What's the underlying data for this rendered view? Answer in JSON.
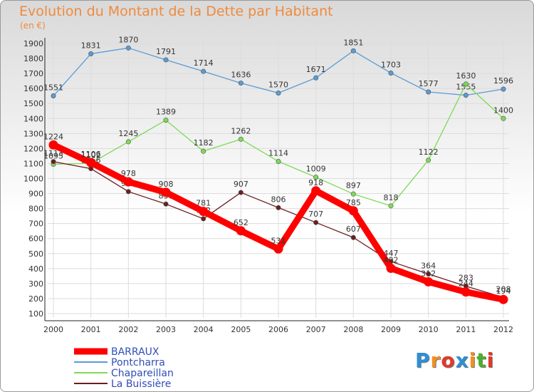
{
  "title": "Evolution du Montant de la Dette par Habitant",
  "unit_label": "(en €)",
  "logo": {
    "letters": [
      "P",
      "r",
      "o",
      "x",
      "i",
      "t",
      "i"
    ],
    "colors": [
      "#2f8fd6",
      "#f29020",
      "#e23a2a",
      "#2f8fd6",
      "#f29020",
      "#4caf2a",
      "#e23a2a"
    ]
  },
  "chart_data": {
    "type": "line",
    "title": "Evolution du Montant de la Dette par Habitant",
    "ylabel": "(en €)",
    "xlabel": "",
    "x": [
      "2000",
      "2001",
      "2002",
      "2003",
      "2004",
      "2005",
      "2006",
      "2007",
      "2008",
      "2009",
      "2010",
      "2011",
      "2012"
    ],
    "ylim": [
      100,
      1900
    ],
    "yticks": [
      100,
      200,
      300,
      400,
      500,
      600,
      700,
      800,
      900,
      1000,
      1100,
      1200,
      1300,
      1400,
      1500,
      1600,
      1700,
      1800,
      1900
    ],
    "grid": true,
    "legend": "bottom-left",
    "series": [
      {
        "name": "BARRAUX",
        "color": "#ff0000",
        "values": [
          1224,
          1106,
          978,
          908,
          781,
          652,
          531,
          918,
          785,
          402,
          312,
          244,
          194
        ]
      },
      {
        "name": "Pontcharra",
        "color": "#5b9bd5",
        "values": [
          1551,
          1831,
          1870,
          1791,
          1714,
          1636,
          1570,
          1671,
          1851,
          1703,
          1577,
          1555,
          1596
        ]
      },
      {
        "name": "Chapareillan",
        "color": "#7ed957",
        "values": [
          1095,
          1102,
          1245,
          1389,
          1182,
          1262,
          1114,
          1009,
          897,
          818,
          1122,
          1630,
          1400
        ]
      },
      {
        "name": "La Buissière",
        "color": "#6b1f1f",
        "values": [
          1113,
          1066,
          913,
          830,
          732,
          907,
          806,
          707,
          607,
          447,
          364,
          283,
          208
        ]
      }
    ]
  }
}
